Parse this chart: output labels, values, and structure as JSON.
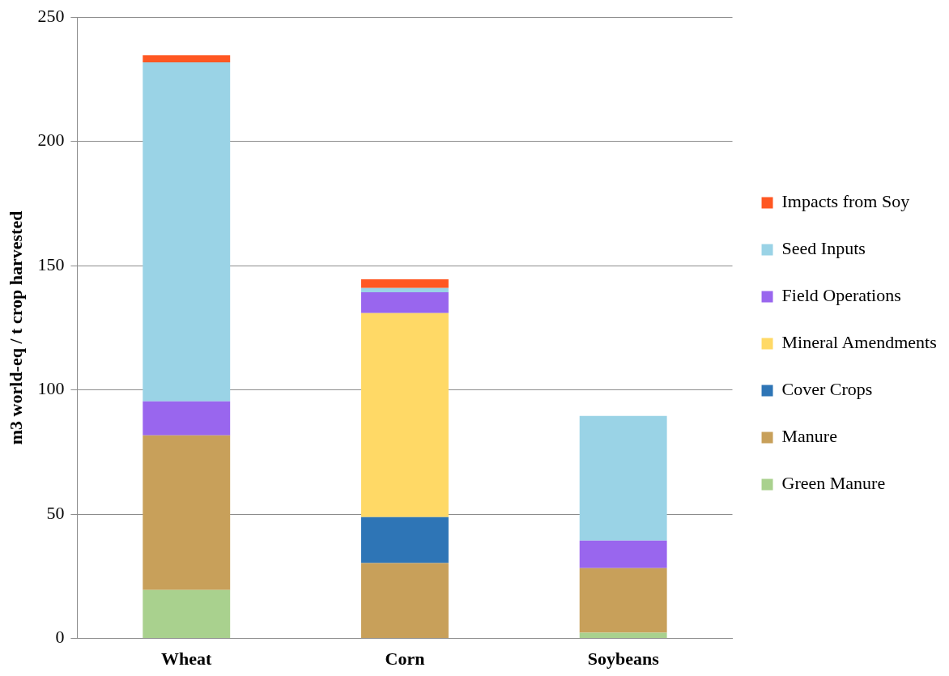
{
  "chart_data": {
    "type": "bar",
    "stacked": true,
    "ylabel": "m3 world-eq / t crop harvested",
    "categories": [
      "Wheat",
      "Corn",
      "Soybeans"
    ],
    "series": [
      {
        "name": "Green Manure",
        "color": "#a9d18e",
        "values": [
          19.5,
          0,
          2.3
        ]
      },
      {
        "name": "Manure",
        "color": "#c8a05a",
        "values": [
          62.2,
          30.3,
          26
        ]
      },
      {
        "name": "Cover Crops",
        "color": "#2e75b6",
        "values": [
          0,
          18.5,
          0
        ]
      },
      {
        "name": "Mineral Amendments",
        "color": "#ffd966",
        "values": [
          0,
          82.1,
          0
        ]
      },
      {
        "name": "Field Operations",
        "color": "#9966ee",
        "values": [
          13.7,
          8.4,
          11.1
        ]
      },
      {
        "name": "Seed Inputs",
        "color": "#9ad3e6",
        "values": [
          136.4,
          1.7,
          50.1
        ]
      },
      {
        "name": "Impacts from Soy",
        "color": "#ff5722",
        "values": [
          2.9,
          3.5,
          0
        ]
      }
    ],
    "ylim": [
      0,
      250
    ],
    "yticks": [
      0,
      50,
      100,
      150,
      200,
      250
    ],
    "grid": "y",
    "legend": "right"
  }
}
